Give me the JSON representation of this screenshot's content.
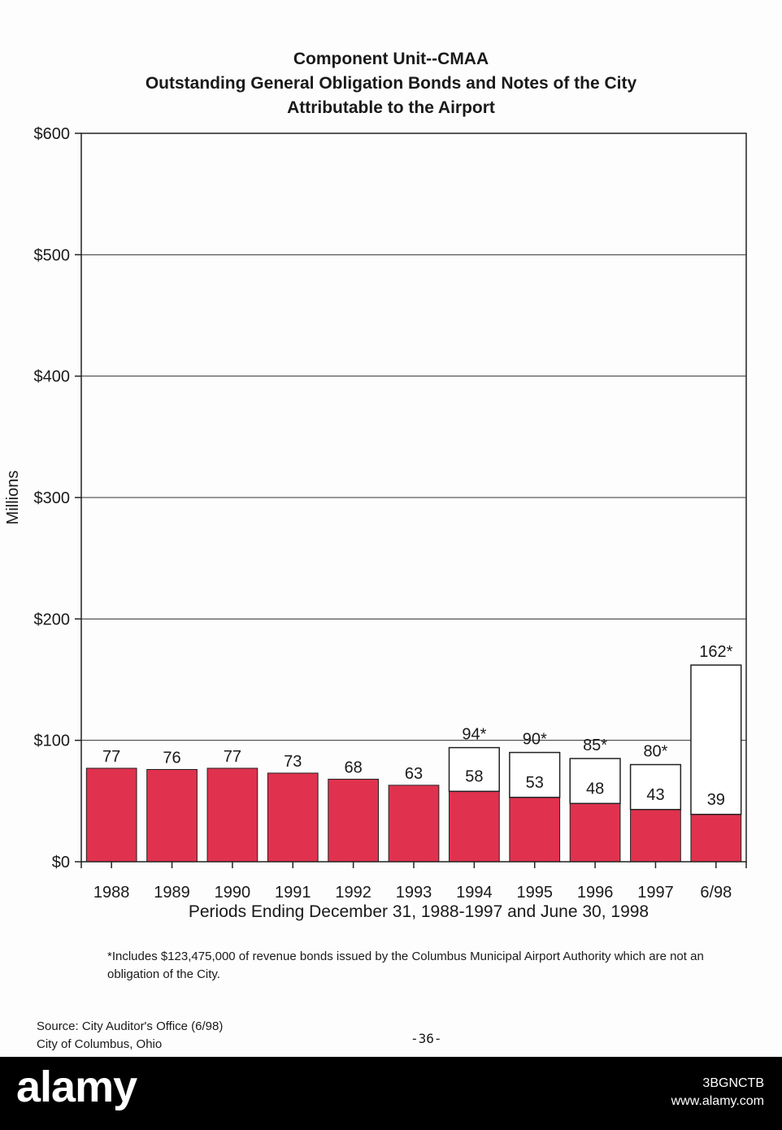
{
  "chart_data": {
    "type": "bar",
    "stacked": true,
    "title": [
      "Component Unit--CMAA",
      "Outstanding General Obligation Bonds and Notes of the City",
      "Attributable to the Airport"
    ],
    "xlabel": "Periods Ending December 31, 1988-1997 and June 30, 1998",
    "ylabel": "Millions",
    "ylim": [
      0,
      600
    ],
    "yticks": [
      0,
      100,
      200,
      300,
      400,
      500,
      600
    ],
    "ytick_labels": [
      "$0",
      "$100",
      "$200",
      "$300",
      "$400",
      "$500",
      "$600"
    ],
    "grid": true,
    "categories": [
      "1988",
      "1989",
      "1990",
      "1991",
      "1992",
      "1993",
      "1994",
      "1995",
      "1996",
      "1997",
      "6/98"
    ],
    "series": [
      {
        "values": [
          77,
          76,
          77,
          73,
          68,
          63,
          58,
          53,
          48,
          43,
          39
        ],
        "color": "#e0324e"
      },
      {
        "values": [
          0,
          0,
          0,
          0,
          0,
          0,
          36,
          37,
          37,
          37,
          123
        ],
        "color": "#ffffff"
      }
    ],
    "bottom_labels": [
      "77",
      "76",
      "77",
      "73",
      "68",
      "63",
      "58",
      "53",
      "48",
      "43",
      "39"
    ],
    "total_labels": [
      "",
      "",
      "",
      "",
      "",
      "",
      "94*",
      "90*",
      "85*",
      "80*",
      "162*"
    ]
  },
  "footnote": "*Includes $123,475,000 of revenue bonds issued by the Columbus Municipal Airport Authority which are not an obligation of the City.",
  "source": [
    "Source: City Auditor's Office (6/98)",
    "City of Columbus, Ohio"
  ],
  "page_number": "-36-",
  "watermark": {
    "brand": "alamy",
    "image_id": "3BGNCTB",
    "site": "www.alamy.com",
    "bar_color": "#000000"
  }
}
